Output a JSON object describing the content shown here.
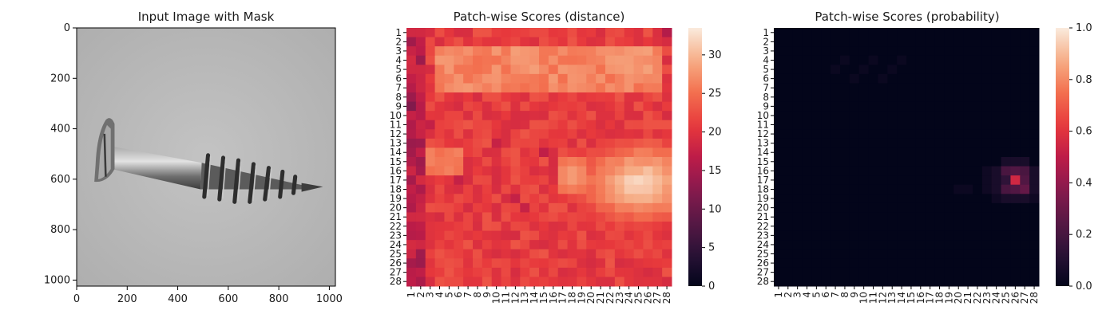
{
  "colors": {
    "figure_bg": "#ffffff",
    "axis": "#000000",
    "text": "#1a1a1a"
  },
  "chart_data": [
    {
      "type": "image",
      "title": "Input Image with Mask",
      "subject": "screw",
      "x_ticks": [
        0,
        200,
        400,
        600,
        800,
        1000
      ],
      "y_ticks": [
        0,
        200,
        400,
        600,
        800,
        1000
      ],
      "xlim": [
        0,
        1024
      ],
      "ylim": [
        1024,
        0
      ]
    },
    {
      "type": "heatmap",
      "title": "Patch-wise Scores (distance)",
      "rows": 28,
      "cols": 28,
      "colorbar_ticks": [
        0,
        5,
        10,
        15,
        20,
        25,
        30
      ],
      "vmin": 0,
      "vmax": 33.5,
      "colormap": "rocket",
      "hot_region": {
        "rows": [
          15,
          20
        ],
        "cols": [
          16,
          27
        ],
        "peak": 33
      }
    },
    {
      "type": "heatmap",
      "title": "Patch-wise Scores (probability)",
      "rows": 28,
      "cols": 28,
      "colorbar_ticks": [
        0.0,
        0.2,
        0.4,
        0.6,
        0.8,
        1.0
      ],
      "vmin": 0,
      "vmax": 1,
      "colormap": "rocket",
      "peak_cell": {
        "row": 17,
        "col": 26,
        "value": 0.55
      }
    }
  ]
}
